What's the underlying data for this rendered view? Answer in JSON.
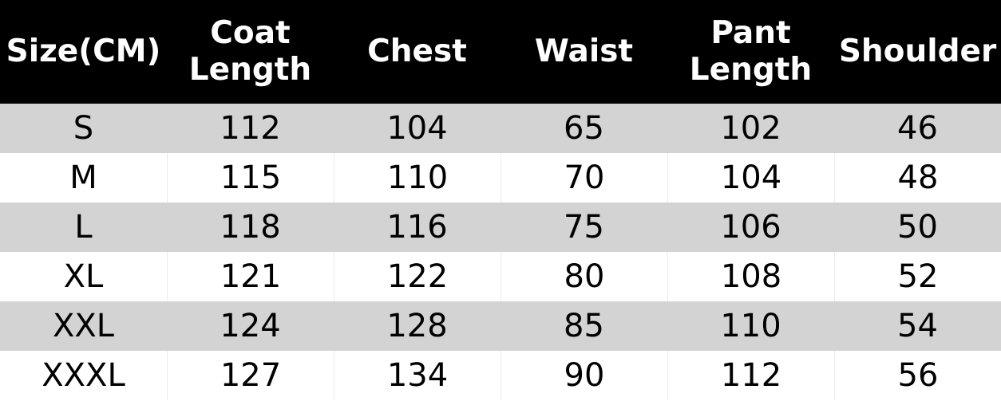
{
  "table": {
    "header": [
      "Size(CM)",
      "Coat Length",
      "Chest",
      "Waist",
      "Pant Length",
      "Shoulder"
    ],
    "rows": [
      [
        "S",
        112,
        104,
        65,
        102,
        46
      ],
      [
        "M",
        115,
        110,
        70,
        104,
        48
      ],
      [
        "L",
        118,
        116,
        75,
        106,
        50
      ],
      [
        "XL",
        121,
        122,
        80,
        108,
        52
      ],
      [
        "XXL",
        124,
        128,
        85,
        110,
        54
      ],
      [
        "XXXL",
        127,
        134,
        90,
        112,
        56
      ]
    ]
  }
}
